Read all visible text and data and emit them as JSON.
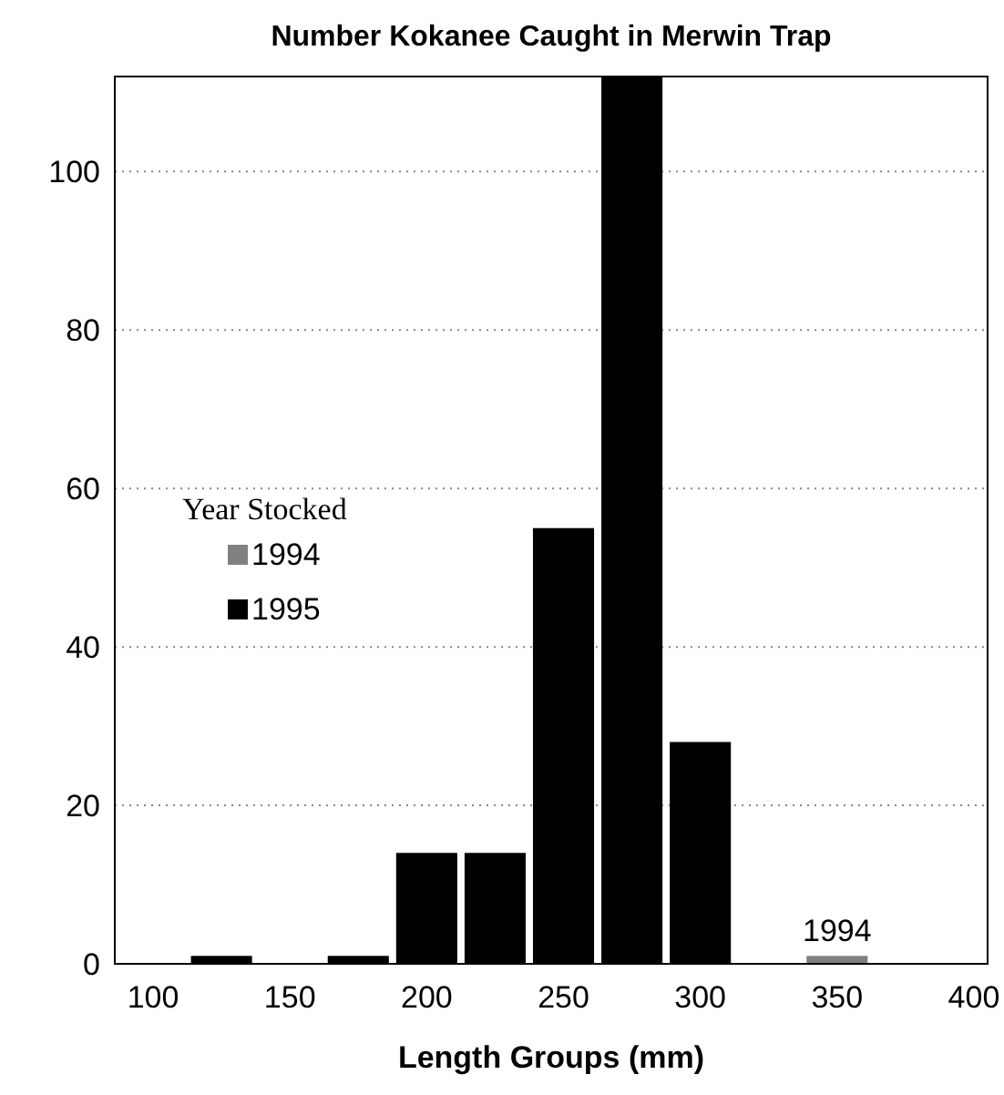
{
  "chart_data": {
    "type": "histogram",
    "title": "Number Kokanee Caught in Merwin Trap",
    "xlabel": "Length Groups (mm)",
    "legend_title": "Year Stocked",
    "bins": [
      112.5,
      137.5,
      162.5,
      187.5,
      212.5,
      237.5,
      262.5,
      287.5,
      312.5,
      337.5,
      362.5
    ],
    "series": [
      {
        "name": "1994",
        "color": "#808080",
        "values": [
          0,
          0,
          0,
          0,
          0,
          0,
          0,
          0,
          0,
          1
        ]
      },
      {
        "name": "1995",
        "color": "#000000",
        "values": [
          1,
          0,
          1,
          14,
          14,
          55,
          112,
          28,
          0,
          0
        ]
      }
    ],
    "xlim": [
      86,
      405
    ],
    "xticks": [
      100,
      150,
      200,
      250,
      300,
      350,
      400
    ],
    "ylim": [
      0,
      112
    ],
    "yticks": [
      0,
      20,
      40,
      60,
      80,
      100
    ],
    "grid": "y",
    "legend": "left",
    "annotations": [
      {
        "text": "1994",
        "x": 350,
        "y": 1
      }
    ]
  }
}
